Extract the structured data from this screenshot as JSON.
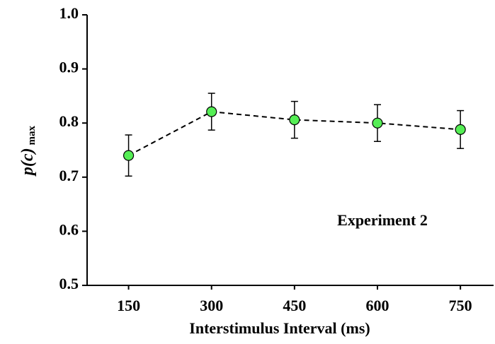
{
  "chart_data": {
    "type": "line",
    "x": [
      150,
      300,
      450,
      600,
      750
    ],
    "values": [
      0.74,
      0.821,
      0.806,
      0.8,
      0.788
    ],
    "errors": [
      0.038,
      0.034,
      0.034,
      0.034,
      0.035
    ],
    "color": "#55ee55",
    "line_style": "dashed",
    "xlabel": "Interstimulus Interval (ms)",
    "ylabel": "p(c)",
    "ylabel_subscript": "max",
    "annotation": "Experiment 2",
    "xlim": [
      75,
      810
    ],
    "ylim": [
      0.5,
      1.0
    ],
    "xticks": [
      150,
      300,
      450,
      600,
      750
    ],
    "yticks": [
      {
        "value": 0.5,
        "label": "0.5"
      },
      0.6,
      0.7,
      0.8,
      0.9,
      {
        "value": 1.0,
        "label": "1.0"
      }
    ]
  }
}
